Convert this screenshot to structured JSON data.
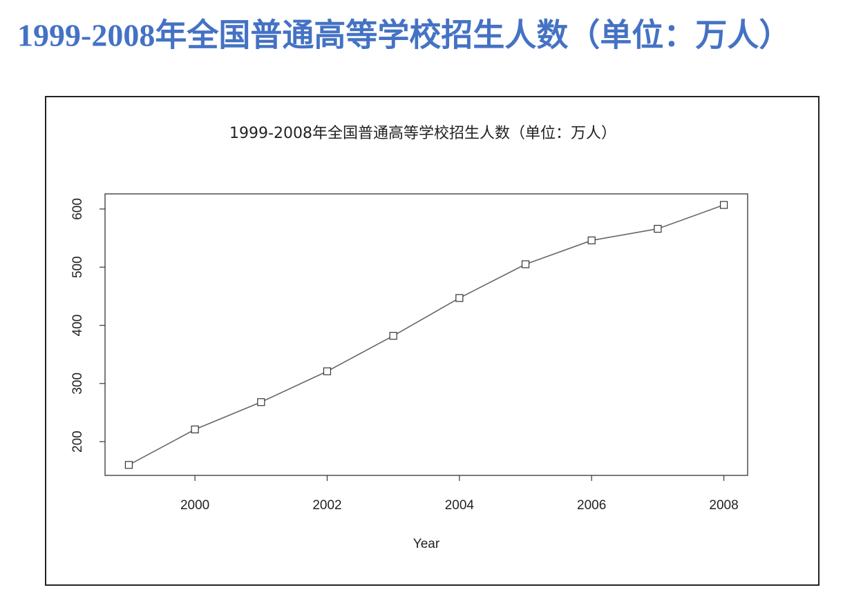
{
  "header": {
    "title": "1999-2008年全国普通高等学校招生人数（单位：万人）"
  },
  "chart_data": {
    "type": "line",
    "title": "1999-2008年全国普通高等学校招生人数（单位：万人）",
    "xlabel": "Year",
    "x": [
      1999,
      2000,
      2001,
      2002,
      2003,
      2004,
      2005,
      2006,
      2007,
      2008
    ],
    "values": [
      160,
      221,
      268,
      321,
      382,
      447,
      505,
      546,
      566,
      607
    ],
    "color": "#666666",
    "marker": "square",
    "xlim": [
      1998.64,
      2008.36
    ],
    "ylim": [
      142,
      626
    ],
    "xticks": [
      2000,
      2002,
      2004,
      2006,
      2008
    ],
    "yticks": [
      200,
      300,
      400,
      500,
      600
    ]
  }
}
